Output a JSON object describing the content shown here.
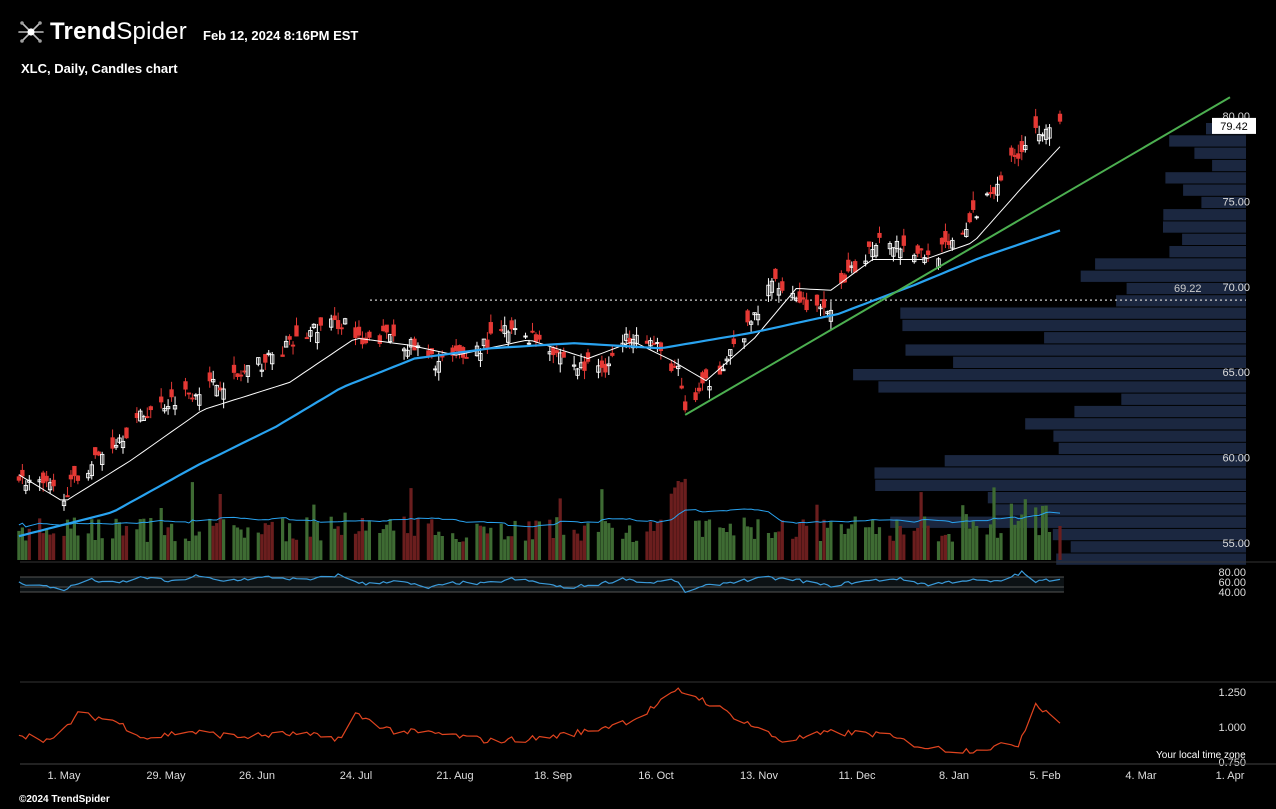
{
  "header": {
    "brand_bold": "Trend",
    "brand_light": "Spider",
    "timestamp": "Feb 12, 2024 8:16PM EST",
    "subtitle": "XLC, Daily, Candles chart"
  },
  "footer": {
    "copyright": "©2024 TrendSpider",
    "timezone_note": "Your local time zone"
  },
  "colors": {
    "up": "#ffffff",
    "down": "#e53935",
    "sma_short": "#ffffff",
    "sma_long": "#29a3f0",
    "trendline": "#4caf50",
    "volume_up": "#3e6b33",
    "volume_down": "#6b1e1e",
    "volume_ma": "#29a3f0",
    "volume_profile": "#1b2740",
    "rsi_line": "#3a9ad9",
    "lower_line": "#e0441f",
    "support_line": "#cccccc"
  },
  "chart_data": {
    "type": "candlestick",
    "symbol": "XLC",
    "interval": "Daily",
    "price_axis": {
      "ylim": [
        53.9,
        81.5
      ],
      "ticks": [
        "80.00",
        "75.00",
        "70.00",
        "65.00",
        "60.00",
        "55.00"
      ]
    },
    "last_price_label": "79.42",
    "horizontal_level": {
      "value": 69.22,
      "label": "69.22"
    },
    "x_tick_labels": [
      "1. May",
      "29. May",
      "26. Jun",
      "24. Jul",
      "21. Aug",
      "18. Sep",
      "16. Oct",
      "13. Nov",
      "11. Dec",
      "8. Jan",
      "5. Feb",
      "4. Mar",
      "1. Apr"
    ],
    "trendline": {
      "start": {
        "date": "2023-10-27",
        "price": 62.5
      },
      "end": {
        "date": "2024-04-01",
        "price": 81.1
      }
    },
    "close_series": {
      "dates": [
        "2023-04-18",
        "2023-05-01",
        "2023-05-10",
        "2023-05-25",
        "2023-06-05",
        "2023-06-20",
        "2023-06-30",
        "2023-07-12",
        "2023-07-21",
        "2023-07-26",
        "2023-08-03",
        "2023-08-16",
        "2023-08-25",
        "2023-09-05",
        "2023-09-15",
        "2023-09-26",
        "2023-10-04",
        "2023-10-13",
        "2023-10-18",
        "2023-10-25",
        "2023-10-27",
        "2023-11-03",
        "2023-11-14",
        "2023-11-22",
        "2023-11-29",
        "2023-12-06",
        "2023-12-14",
        "2023-12-22",
        "2024-01-05",
        "2024-01-12",
        "2024-01-19",
        "2024-01-26",
        "2024-02-01",
        "2024-02-05",
        "2024-02-09",
        "2024-02-12"
      ],
      "values": [
        58.8,
        57.9,
        59.9,
        62.7,
        63.8,
        64.7,
        65.9,
        67.5,
        68.0,
        66.5,
        67.3,
        65.6,
        66.0,
        67.4,
        67.0,
        65.3,
        65.4,
        67.6,
        66.6,
        65.0,
        62.8,
        64.5,
        67.5,
        70.5,
        69.3,
        68.4,
        70.8,
        73.0,
        71.8,
        72.4,
        74.4,
        76.5,
        78.2,
        79.2,
        79.5,
        79.42
      ]
    },
    "sma_short_series": {
      "dates": [
        "2023-04-18",
        "2023-05-01",
        "2023-05-20",
        "2023-06-10",
        "2023-07-05",
        "2023-07-24",
        "2023-08-08",
        "2023-08-22",
        "2023-09-12",
        "2023-09-29",
        "2023-10-12",
        "2023-10-23",
        "2023-11-02",
        "2023-11-16",
        "2023-11-28",
        "2023-12-08",
        "2023-12-20",
        "2024-01-04",
        "2024-01-18",
        "2024-02-01",
        "2024-02-12"
      ],
      "values": [
        59.0,
        57.4,
        59.8,
        62.8,
        64.4,
        67.0,
        66.6,
        66.0,
        66.9,
        65.8,
        66.8,
        65.7,
        64.5,
        67.0,
        69.9,
        69.8,
        71.6,
        71.6,
        72.6,
        75.8,
        78.2
      ]
    },
    "sma_long_series": {
      "dates": [
        "2023-04-18",
        "2023-05-15",
        "2023-06-08",
        "2023-07-01",
        "2023-07-20",
        "2023-08-10",
        "2023-09-01",
        "2023-09-25",
        "2023-10-20",
        "2023-11-15",
        "2023-12-10",
        "2024-01-01",
        "2024-01-20",
        "2024-02-12"
      ],
      "values": [
        55.4,
        56.8,
        59.5,
        61.8,
        64.1,
        65.8,
        66.4,
        66.7,
        66.4,
        67.3,
        68.4,
        70.1,
        71.7,
        73.3
      ]
    },
    "volume_profile_panel": {
      "price_bins": 36,
      "note": "horizontal volume-by-price bars"
    },
    "rsi_panel": {
      "ylim": [
        30,
        85
      ],
      "ticks": [
        "80.00",
        "60.00",
        "40.00"
      ],
      "band": [
        40,
        70
      ],
      "mid": 50,
      "series": {
        "dates": [
          "2023-04-18",
          "2023-04-25",
          "2023-05-01",
          "2023-05-08",
          "2023-05-16",
          "2023-05-24",
          "2023-06-01",
          "2023-06-08",
          "2023-06-15",
          "2023-06-22",
          "2023-06-30",
          "2023-07-10",
          "2023-07-19",
          "2023-07-27",
          "2023-08-04",
          "2023-08-14",
          "2023-08-22",
          "2023-08-30",
          "2023-09-07",
          "2023-09-15",
          "2023-09-22",
          "2023-10-02",
          "2023-10-10",
          "2023-10-16",
          "2023-10-24",
          "2023-10-27",
          "2023-11-03",
          "2023-11-10",
          "2023-11-20",
          "2023-11-29",
          "2023-12-07",
          "2023-12-15",
          "2023-12-27",
          "2024-01-05",
          "2024-01-16",
          "2024-01-25",
          "2024-02-01",
          "2024-02-05",
          "2024-02-12"
        ],
        "values": [
          58,
          52,
          45,
          65,
          57,
          70,
          60,
          72,
          62,
          66,
          70,
          63,
          74,
          55,
          63,
          48,
          59,
          56,
          66,
          59,
          48,
          56,
          67,
          58,
          64,
          41,
          53,
          61,
          68,
          63,
          52,
          60,
          67,
          55,
          64,
          60,
          79,
          60,
          68
        ]
      }
    },
    "lower_panel": {
      "ylim": [
        0.69,
        1.28
      ],
      "ticks": [
        "1.250",
        "1.000",
        "0.750"
      ],
      "series": {
        "dates": [
          "2023-04-18",
          "2023-04-28",
          "2023-05-05",
          "2023-05-15",
          "2023-05-25",
          "2023-06-05",
          "2023-06-20",
          "2023-07-05",
          "2023-07-20",
          "2023-07-24",
          "2023-08-04",
          "2023-08-18",
          "2023-09-01",
          "2023-09-15",
          "2023-09-29",
          "2023-10-13",
          "2023-10-25",
          "2023-10-30",
          "2023-11-10",
          "2023-11-24",
          "2023-12-08",
          "2023-12-22",
          "2024-01-05",
          "2024-01-15",
          "2024-01-31",
          "2024-02-05",
          "2024-02-12"
        ],
        "values": [
          0.95,
          0.9,
          1.09,
          1.05,
          0.92,
          0.97,
          0.93,
          0.95,
          0.92,
          1.09,
          0.97,
          0.95,
          0.9,
          0.92,
          0.97,
          1.06,
          1.26,
          1.22,
          1.08,
          0.9,
          0.96,
          0.95,
          0.85,
          0.83,
          0.88,
          1.17,
          1.04
        ]
      }
    }
  }
}
